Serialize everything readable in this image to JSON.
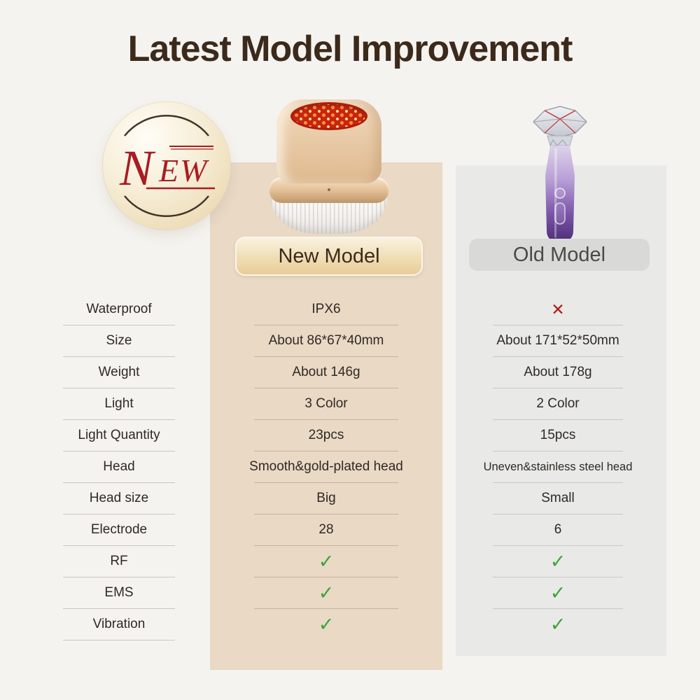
{
  "title": "Latest Model Improvement",
  "badge": {
    "n": "N",
    "ew": "EW",
    "label": "NEW"
  },
  "columns": {
    "new": {
      "label": "New Model"
    },
    "old": {
      "label": "Old Model"
    }
  },
  "rows": [
    {
      "label": "Waterproof",
      "new": "IPX6",
      "old": "✕"
    },
    {
      "label": "Size",
      "new": "About 86*67*40mm",
      "old": "About 171*52*50mm"
    },
    {
      "label": "Weight",
      "new": "About 146g",
      "old": "About 178g"
    },
    {
      "label": "Light",
      "new": "3 Color",
      "old": "2 Color"
    },
    {
      "label": "Light Quantity",
      "new": "23pcs",
      "old": "15pcs"
    },
    {
      "label": "Head",
      "new": "Smooth&gold-plated head",
      "old": "Uneven&stainless steel head"
    },
    {
      "label": "Head size",
      "new": "Big",
      "old": "Small"
    },
    {
      "label": "Electrode",
      "new": "28",
      "old": "6"
    },
    {
      "label": "RF",
      "new": "✓",
      "old": "✓"
    },
    {
      "label": "EMS",
      "new": "✓",
      "old": "✓"
    },
    {
      "label": "Vibration",
      "new": "✓",
      "old": "✓"
    }
  ],
  "icons": {
    "check": "✓",
    "cross": "✕"
  },
  "colors": {
    "page_bg": "#f5f3ef",
    "panel_new_bg": "#e9d9c5",
    "panel_old_bg": "#e9e9e7",
    "title_text": "#3b2a1b",
    "badge_text": "#a81c22",
    "check_green": "#3aa43a",
    "cross_red": "#b11a1a",
    "pill_new_gold": "#e8cd99",
    "pill_old_gray": "#d9d9d8"
  }
}
